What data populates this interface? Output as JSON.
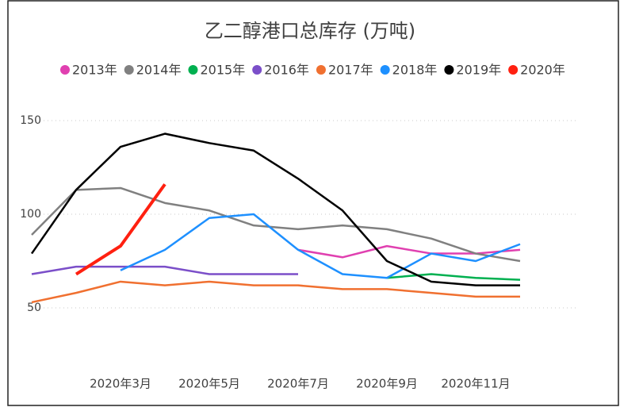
{
  "chart_data": {
    "type": "line",
    "title": "乙二醇港口总库存 (万吨)",
    "categories": [
      null,
      null,
      "2020年3月",
      null,
      "2020年5月",
      null,
      "2020年7月",
      null,
      "2020年9月",
      null,
      "2020年11月",
      null
    ],
    "series": [
      {
        "name": "2013年",
        "color": "#e040b0",
        "values": [
          null,
          null,
          null,
          null,
          null,
          null,
          81,
          77,
          83,
          79,
          79,
          81
        ]
      },
      {
        "name": "2014年",
        "color": "#808080",
        "values": [
          89,
          113,
          114,
          106,
          102,
          94,
          92,
          94,
          92,
          87,
          79,
          75
        ]
      },
      {
        "name": "2015年",
        "color": "#00b050",
        "values": [
          null,
          null,
          null,
          null,
          null,
          null,
          null,
          null,
          66,
          68,
          66,
          65
        ]
      },
      {
        "name": "2016年",
        "color": "#7b4fc9",
        "values": [
          68,
          72,
          72,
          72,
          68,
          68,
          68,
          null,
          null,
          null,
          null,
          null
        ]
      },
      {
        "name": "2017年",
        "color": "#f07030",
        "values": [
          53,
          58,
          64,
          62,
          64,
          62,
          62,
          60,
          60,
          58,
          56,
          56
        ]
      },
      {
        "name": "2018年",
        "color": "#1e90ff",
        "values": [
          null,
          null,
          70,
          81,
          98,
          100,
          81,
          68,
          66,
          79,
          75,
          84
        ]
      },
      {
        "name": "2019年",
        "color": "#000000",
        "values": [
          79,
          113,
          136,
          143,
          138,
          134,
          119,
          102,
          75,
          64,
          62,
          62
        ]
      },
      {
        "name": "2020年",
        "color": "#ff2010",
        "values": [
          null,
          68,
          83,
          116,
          null,
          null,
          null,
          null,
          null,
          null,
          null,
          null
        ]
      }
    ],
    "ylim": [
      0,
      150
    ],
    "yticks": [
      50,
      100,
      150
    ],
    "grid": true
  }
}
